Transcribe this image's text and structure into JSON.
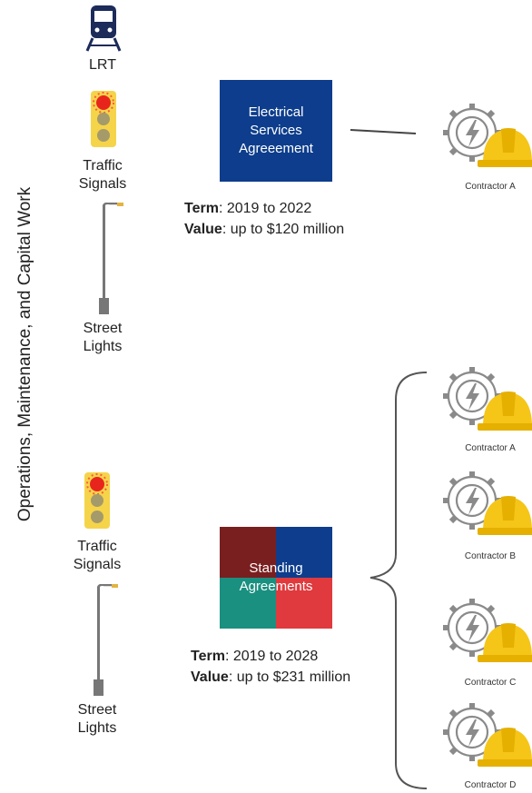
{
  "side_label": "Operations, Maintenance, and Capital Work",
  "groups": [
    {
      "assets": [
        "LRT",
        "Traffic Signals",
        "Street Lights"
      ],
      "agreement": "Electrical Services Agreeement",
      "term": {
        "key": "Term",
        "text": ": 2019 to 2022"
      },
      "value": {
        "key": "Value",
        "text": ": up to $120 million"
      },
      "contractors": [
        "Contractor A"
      ]
    },
    {
      "assets": [
        "Traffic Signals",
        "Street Lights"
      ],
      "agreement": "Standing Agreements",
      "term": {
        "key": "Term",
        "text": ": 2019 to 2028"
      },
      "value": {
        "key": "Value",
        "text": ": up to $231 million"
      },
      "contractors": [
        "Contractor A",
        "Contractor B",
        "Contractor C",
        "Contractor D"
      ]
    }
  ]
}
